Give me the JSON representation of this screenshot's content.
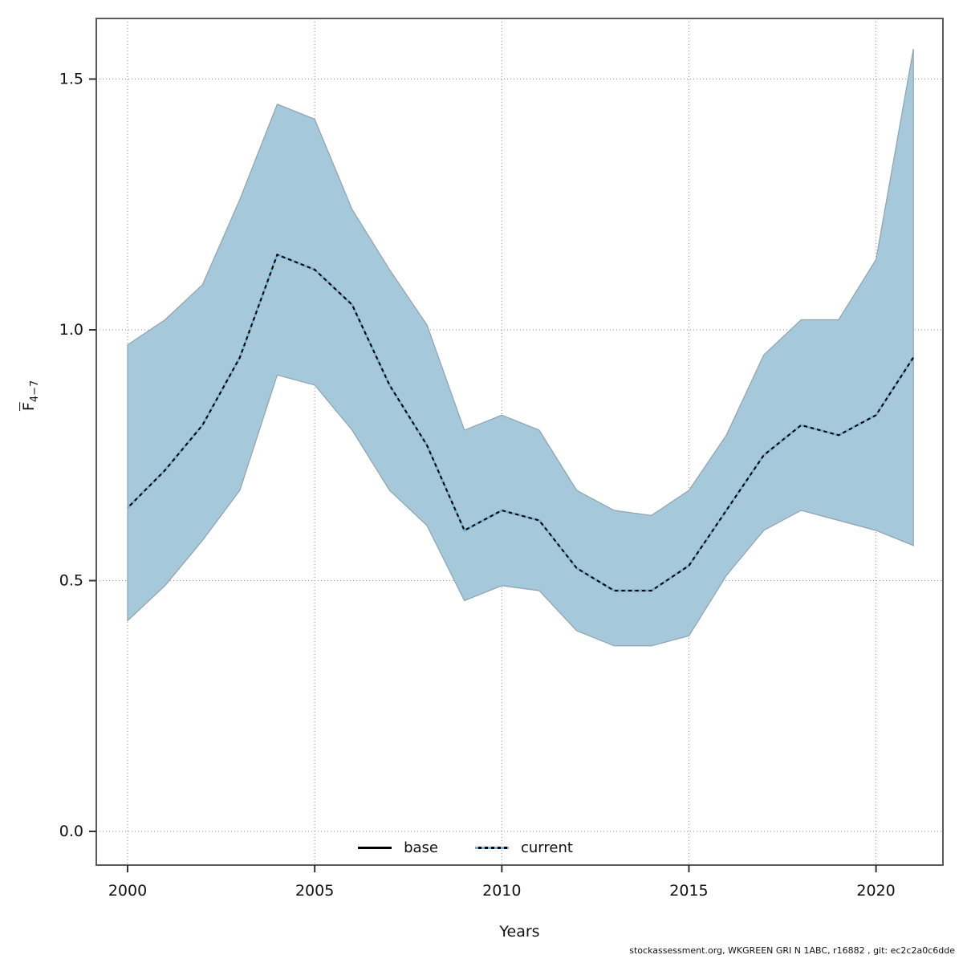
{
  "chart_data": {
    "type": "area",
    "title": "",
    "xlabel": "Years",
    "ylabel": {
      "base": "F",
      "subscript": "4−7"
    },
    "x": [
      2000,
      2001,
      2002,
      2003,
      2004,
      2005,
      2006,
      2007,
      2008,
      2009,
      2010,
      2011,
      2012,
      2013,
      2014,
      2015,
      2016,
      2017,
      2018,
      2019,
      2020,
      2021
    ],
    "series": [
      {
        "name": "base",
        "style": "solid",
        "color": "#000000",
        "values": [
          0.645,
          0.72,
          0.81,
          0.945,
          1.15,
          1.12,
          1.05,
          0.89,
          0.77,
          0.6,
          0.64,
          0.62,
          0.525,
          0.48,
          0.48,
          0.53,
          0.64,
          0.75,
          0.81,
          0.79,
          0.83,
          0.945
        ]
      },
      {
        "name": "current",
        "style": "dotted",
        "color": "#6fb3de",
        "values": [
          0.645,
          0.72,
          0.81,
          0.945,
          1.15,
          1.12,
          1.05,
          0.89,
          0.77,
          0.6,
          0.64,
          0.62,
          0.525,
          0.48,
          0.48,
          0.53,
          0.64,
          0.75,
          0.81,
          0.79,
          0.83,
          0.945
        ]
      }
    ],
    "band": {
      "name": "confidence-band",
      "color": "#a5c8da",
      "edge_color": "#8fa3ad",
      "lower": [
        0.42,
        0.49,
        0.58,
        0.68,
        0.91,
        0.89,
        0.8,
        0.68,
        0.61,
        0.46,
        0.49,
        0.48,
        0.4,
        0.37,
        0.37,
        0.39,
        0.51,
        0.6,
        0.64,
        0.62,
        0.6,
        0.57
      ],
      "upper": [
        0.97,
        1.02,
        1.09,
        1.26,
        1.45,
        1.42,
        1.24,
        1.12,
        1.01,
        0.8,
        0.83,
        0.8,
        0.68,
        0.64,
        0.63,
        0.68,
        0.79,
        0.95,
        1.02,
        1.02,
        1.14,
        1.56
      ]
    },
    "xticks": [
      "2000",
      "2005",
      "2010",
      "2015",
      "2020"
    ],
    "yticks": [
      "0.0",
      "0.5",
      "1.0",
      "1.5"
    ],
    "xlim": [
      1999.16,
      2021.79
    ],
    "ylim": [
      -0.067,
      1.621
    ],
    "grid": "dotted",
    "legend_position": "bottom-center-inside"
  },
  "legend": {
    "items": [
      {
        "label": "base"
      },
      {
        "label": "current"
      }
    ]
  },
  "footer": "stockassessment.org, WKGREEN GRI N 1ABC, r16882 , git: ec2c2a0c6dde"
}
